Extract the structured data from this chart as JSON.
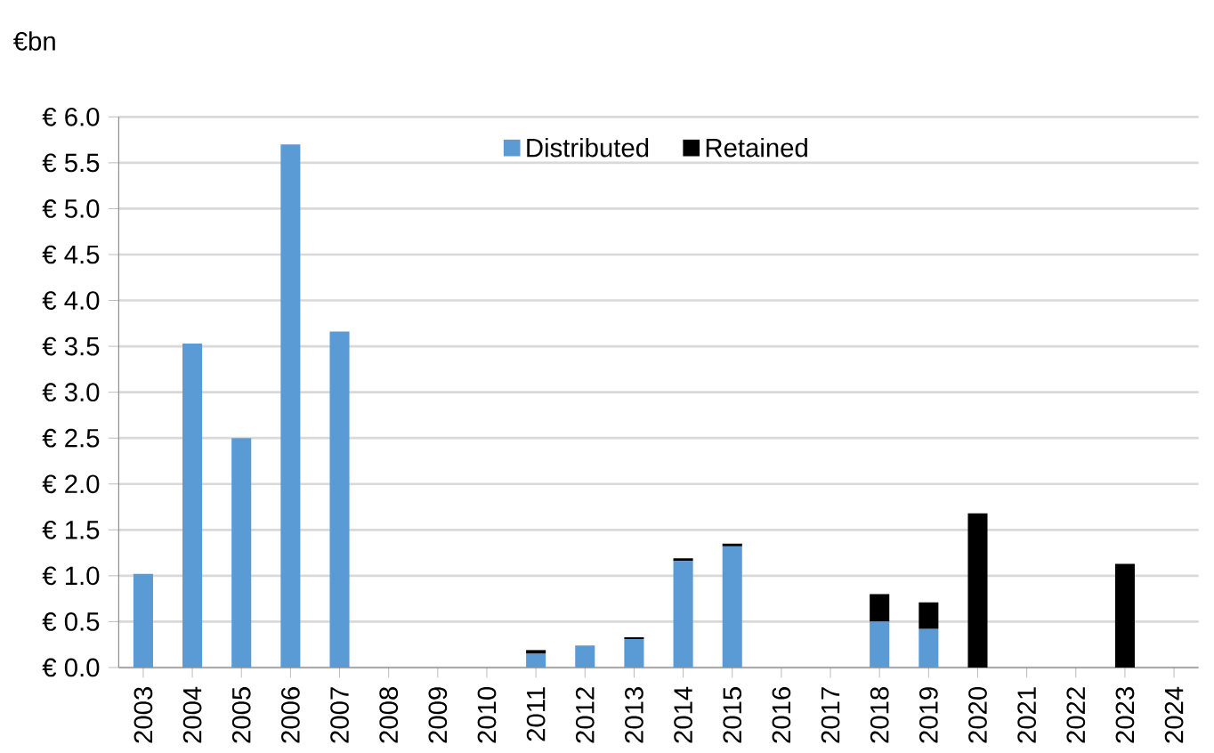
{
  "chart_data": {
    "type": "bar",
    "stacked": true,
    "annotations": [
      "€bn"
    ],
    "categories": [
      "2003",
      "2004",
      "2005",
      "2006",
      "2007",
      "2008",
      "2009",
      "2010",
      "2011",
      "2012",
      "2013",
      "2014",
      "2015",
      "2016",
      "2017",
      "2018",
      "2019",
      "2020",
      "2021",
      "2022",
      "2023",
      "2024"
    ],
    "series": [
      {
        "name": "Distributed",
        "color": "#5b9bd5",
        "values": [
          1.02,
          3.53,
          2.5,
          5.7,
          3.66,
          0,
          0,
          0,
          0.15,
          0.24,
          0.31,
          1.16,
          1.32,
          0,
          0,
          0.5,
          0.42,
          0,
          0,
          0,
          0,
          0
        ]
      },
      {
        "name": "Retained",
        "color": "#000000",
        "values": [
          0,
          0,
          0,
          0,
          0,
          0,
          0,
          0,
          0.04,
          0,
          0.02,
          0.03,
          0.03,
          0,
          0,
          0.3,
          0.29,
          1.68,
          0,
          0,
          1.13,
          0
        ]
      }
    ],
    "ylim": [
      0,
      6
    ],
    "yticks": [
      {
        "value": 0,
        "label": "€ 0.0"
      },
      {
        "value": 0.5,
        "label": "€ 0.5"
      },
      {
        "value": 1,
        "label": "€ 1.0"
      },
      {
        "value": 1.5,
        "label": "€ 1.5"
      },
      {
        "value": 2,
        "label": "€ 2.0"
      },
      {
        "value": 2.5,
        "label": "€ 2.5"
      },
      {
        "value": 3,
        "label": "€ 3.0"
      },
      {
        "value": 3.5,
        "label": "€ 3.5"
      },
      {
        "value": 4,
        "label": "€ 4.0"
      },
      {
        "value": 4.5,
        "label": "€ 4.5"
      },
      {
        "value": 5,
        "label": "€ 5.0"
      },
      {
        "value": 5.5,
        "label": "€ 5.5"
      },
      {
        "value": 6,
        "label": "€ 6.0"
      }
    ],
    "grid": "y",
    "legend": "top"
  }
}
